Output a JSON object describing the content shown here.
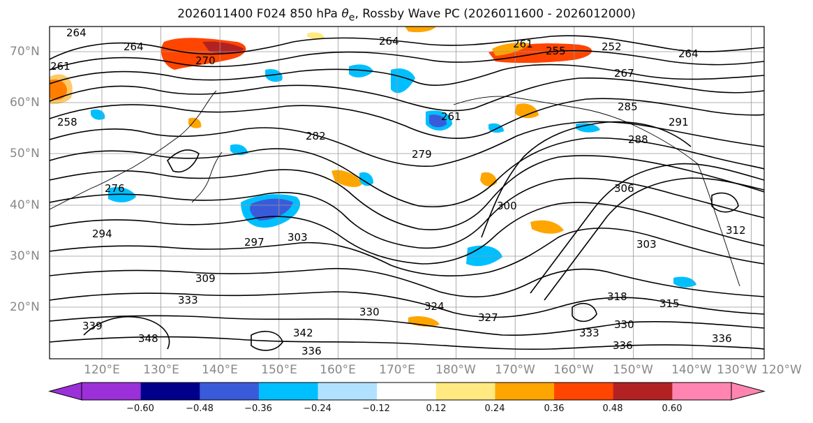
{
  "title": "2026011400 F024 850 hPa θe, Rossby Wave PC (2026011600 - 2026012000)",
  "title_parts": {
    "pre": "2026011400 F024 850 hPa ",
    "theta": "θ",
    "sub": "e",
    "post": ", Rossby Wave PC (2026011600 - 2026012000)"
  },
  "lat_labels": [
    "70°N",
    "60°N",
    "50°N",
    "40°N",
    "30°N",
    "20°N"
  ],
  "lon_labels": [
    "120°E",
    "130°E",
    "140°E",
    "150°E",
    "160°E",
    "170°E",
    "180°W",
    "170°W",
    "160°W",
    "150°W",
    "140°W",
    "130°W",
    "120°W"
  ],
  "contour_labels": [
    "264",
    "264",
    "270",
    "261",
    "264",
    "252",
    "255",
    "261",
    "264",
    "258",
    "267",
    "261",
    "285",
    "291",
    "282",
    "279",
    "288",
    "276",
    "294",
    "297",
    "303",
    "300",
    "306",
    "312",
    "303",
    "309",
    "333",
    "330",
    "324",
    "318",
    "315",
    "330",
    "327",
    "339",
    "348",
    "342",
    "336",
    "336",
    "336",
    "333"
  ],
  "colorbar": {
    "ticks": [
      "−0.60",
      "−0.48",
      "−0.36",
      "−0.24",
      "−0.12",
      "0.12",
      "0.24",
      "0.36",
      "0.48",
      "0.60"
    ],
    "colors": [
      "#9b30d9",
      "#00008b",
      "#3a5bd9",
      "#00bfff",
      "#b0e2ff",
      "#ffffff",
      "#ffe980",
      "#ffa500",
      "#ff4500",
      "#b22222",
      "#ff85b0",
      "#ff85b0"
    ]
  },
  "colors": {
    "contour": "#000000",
    "grid": "#999999",
    "axis_label": "#888888"
  }
}
